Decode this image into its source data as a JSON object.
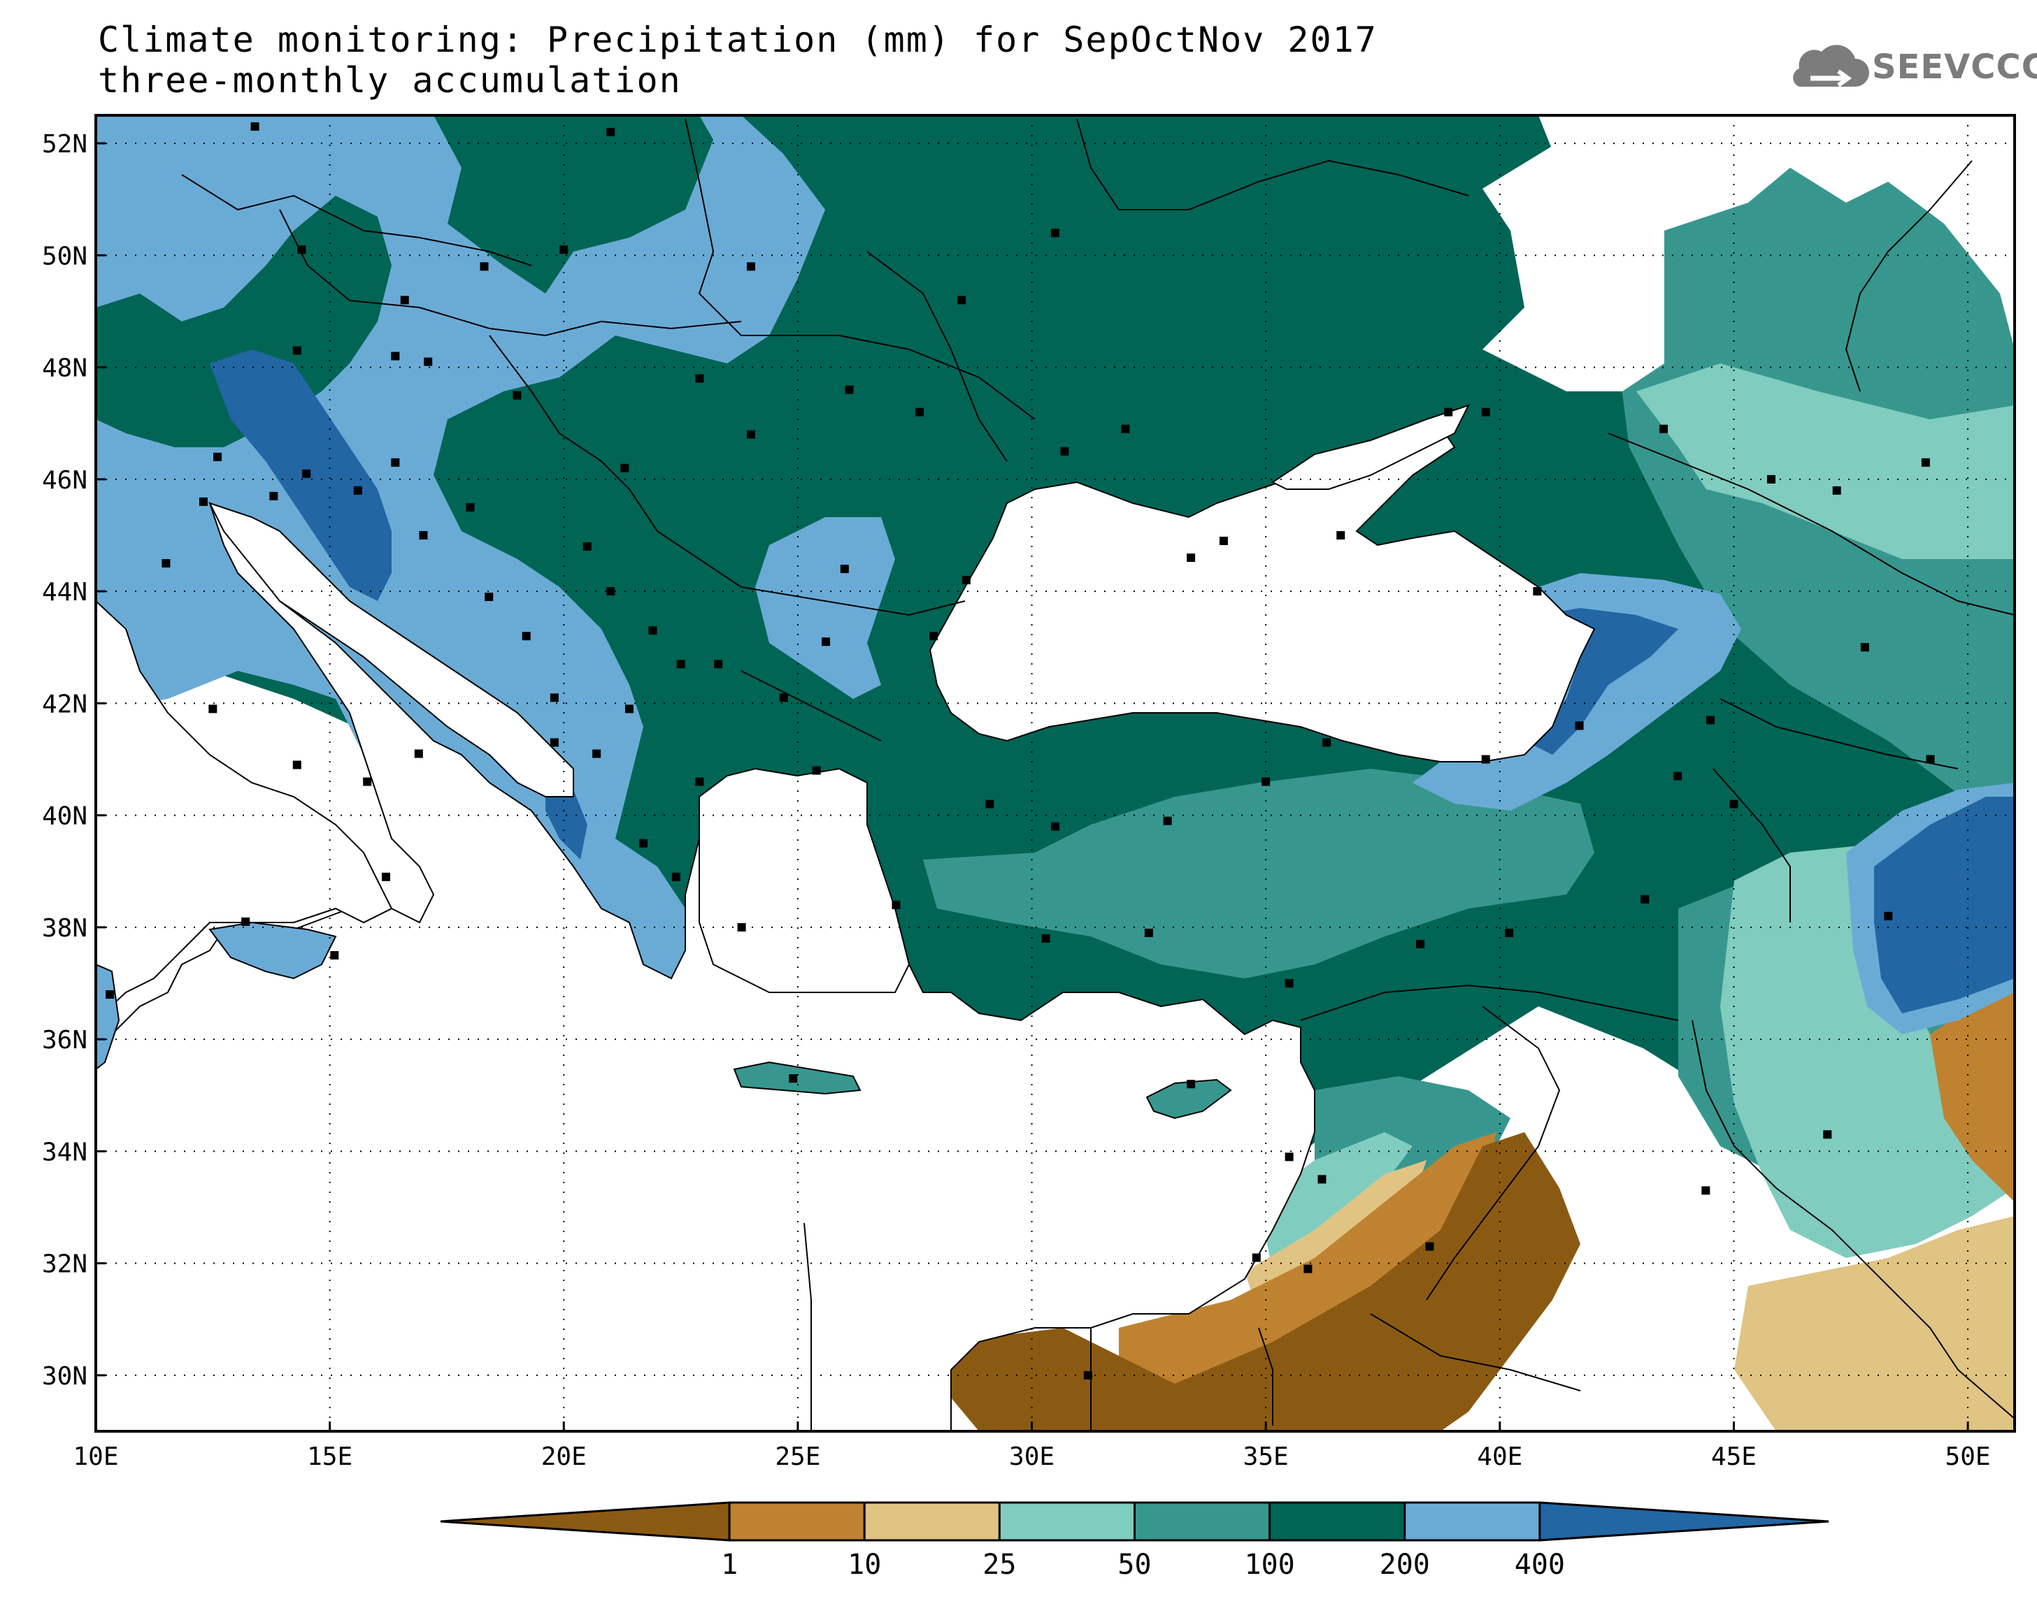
{
  "title": {
    "line1": "Climate monitoring: Precipitation (mm) for SepOctNov 2017",
    "line2": "three-monthly accumulation"
  },
  "logo": {
    "text": "SEEVCCC",
    "icon": "cloud-icon"
  },
  "map": {
    "lon_labels": [
      "10E",
      "15E",
      "20E",
      "25E",
      "30E",
      "35E",
      "40E",
      "45E",
      "50E"
    ],
    "lat_labels": [
      "52N",
      "50N",
      "48N",
      "46N",
      "44N",
      "42N",
      "40N",
      "38N",
      "36N",
      "34N",
      "32N",
      "30N"
    ],
    "lon_range": [
      10,
      51
    ],
    "lat_range": [
      29,
      52.5
    ],
    "colors": {
      "below_1": "#8b5a12",
      "1_10": "#bf8230",
      "10_25": "#e0c484",
      "25_50": "#80ccbf",
      "50_100": "#37978e",
      "100_200": "#006555",
      "200_400": "#6aabd6",
      "above_400": "#2266a4",
      "sea": "#ffffff"
    }
  },
  "colorbar": {
    "ticks": [
      "1",
      "10",
      "25",
      "50",
      "100",
      "200",
      "400"
    ],
    "colors": [
      "#8b5a12",
      "#bf8230",
      "#e0c484",
      "#80ccbf",
      "#37978e",
      "#006555",
      "#6aabd6",
      "#2266a4"
    ]
  }
}
